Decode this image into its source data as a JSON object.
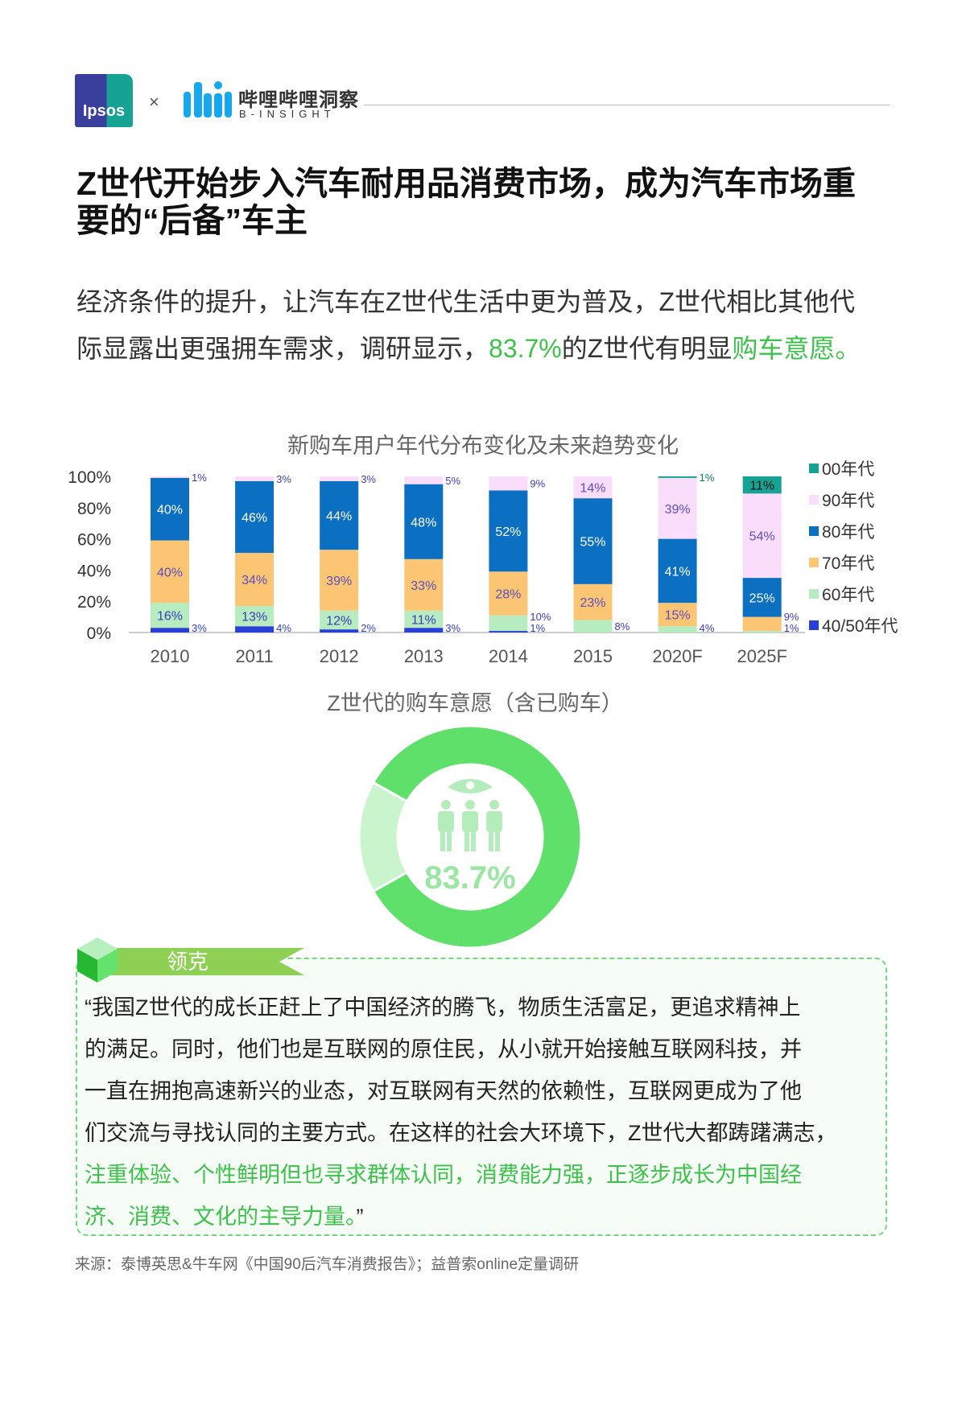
{
  "header": {
    "ipsos_logo": "Ipsos",
    "times": "×",
    "bili_name_cn": "哔哩哔哩洞察",
    "bili_name_en": "B-INSIGHT"
  },
  "title": "Z世代开始步入汽车耐用品消费市场，成为汽车市场重要的“后备”车主",
  "paragraph": [
    [
      {
        "text": "经济条件的提升，让汽车在Z世代生活中更为普及，Z世代相比其他代",
        "hl": false
      }
    ],
    [
      {
        "text": "际显露出更强拥车需求，调研显示，",
        "hl": false
      },
      {
        "text": "83.7%",
        "hl": true
      },
      {
        "text": "的Z世代有明显",
        "hl": false
      },
      {
        "text": "购车意愿。",
        "hl": true
      }
    ]
  ],
  "colors": {
    "green": "#3cc24a",
    "donut_main": "#5fe06a",
    "donut_rest": "#c9f4cc",
    "banner": "#8ed053"
  },
  "chart_data": [
    {
      "type": "bar",
      "stacked": true,
      "title": "新购车用户年代分布变化及未来趋势变化",
      "xlabel": "",
      "ylabel": "",
      "ylim": [
        0,
        100
      ],
      "yticks": [
        "0%",
        "20%",
        "40%",
        "60%",
        "80%",
        "100%"
      ],
      "categories": [
        "2010",
        "2011",
        "2012",
        "2013",
        "2014",
        "2015",
        "2020F",
        "2025F"
      ],
      "legend_position": "right",
      "series": [
        {
          "name": "40/50年代",
          "color": "#2a3fd6",
          "label_color": "#3b3bbd",
          "values": [
            3,
            4,
            2,
            3,
            1,
            0,
            0,
            0
          ]
        },
        {
          "name": "60年代",
          "color": "#b6ecc0",
          "label_color": "#3b3bbd",
          "values": [
            16,
            13,
            12,
            11,
            10,
            8,
            4,
            1
          ]
        },
        {
          "name": "70年代",
          "color": "#fcc574",
          "label_color": "#5a4fc0",
          "values": [
            40,
            34,
            39,
            33,
            28,
            23,
            15,
            9
          ]
        },
        {
          "name": "80年代",
          "color": "#0b6fc2",
          "label_color": "#ffffff",
          "values": [
            40,
            46,
            44,
            48,
            52,
            55,
            41,
            25
          ]
        },
        {
          "name": "90年代",
          "color": "#fadcfb",
          "label_color": "#5a4fc0",
          "values": [
            1,
            3,
            3,
            5,
            9,
            14,
            39,
            54
          ]
        },
        {
          "name": "00年代",
          "color": "#16a394",
          "label_color": "#111111",
          "values": [
            0,
            0,
            0,
            0,
            0,
            0,
            1,
            11
          ]
        }
      ]
    },
    {
      "type": "pie",
      "donut": true,
      "title": "Z世代的购车意愿（含已购车）",
      "values": [
        83.7,
        16.3
      ],
      "center_label": "83.7%"
    }
  ],
  "quote": {
    "banner": "领克",
    "lines": [
      [
        {
          "text": "“我国Z世代的成长正赶上了中国经济的腾飞，物质生活富足，更追求精神上",
          "hl": false
        }
      ],
      [
        {
          "text": "的满足。同时，他们也是互联网的原住民，从小就开始接触互联网科技，并",
          "hl": false
        }
      ],
      [
        {
          "text": "一直在拥抱高速新兴的业态，对互联网有天然的依赖性，互联网更成为了他",
          "hl": false
        }
      ],
      [
        {
          "text": "们交流与寻找认同的主要方式。在这样的社会大环境下，Z世代大都踌躇满志，",
          "hl": false
        }
      ],
      [
        {
          "text": "注重体验、个性鲜明但也寻求群体认同，消费能力强，正逐步成长为中国经",
          "hl": true
        }
      ],
      [
        {
          "text": "济、消费、文化的主导力量。",
          "hl": true
        },
        {
          "text": "”",
          "hl": false
        }
      ]
    ]
  },
  "source": "来源：泰博英思&牛车网《中国90后汽车消费报告》；益普索online定量调研"
}
